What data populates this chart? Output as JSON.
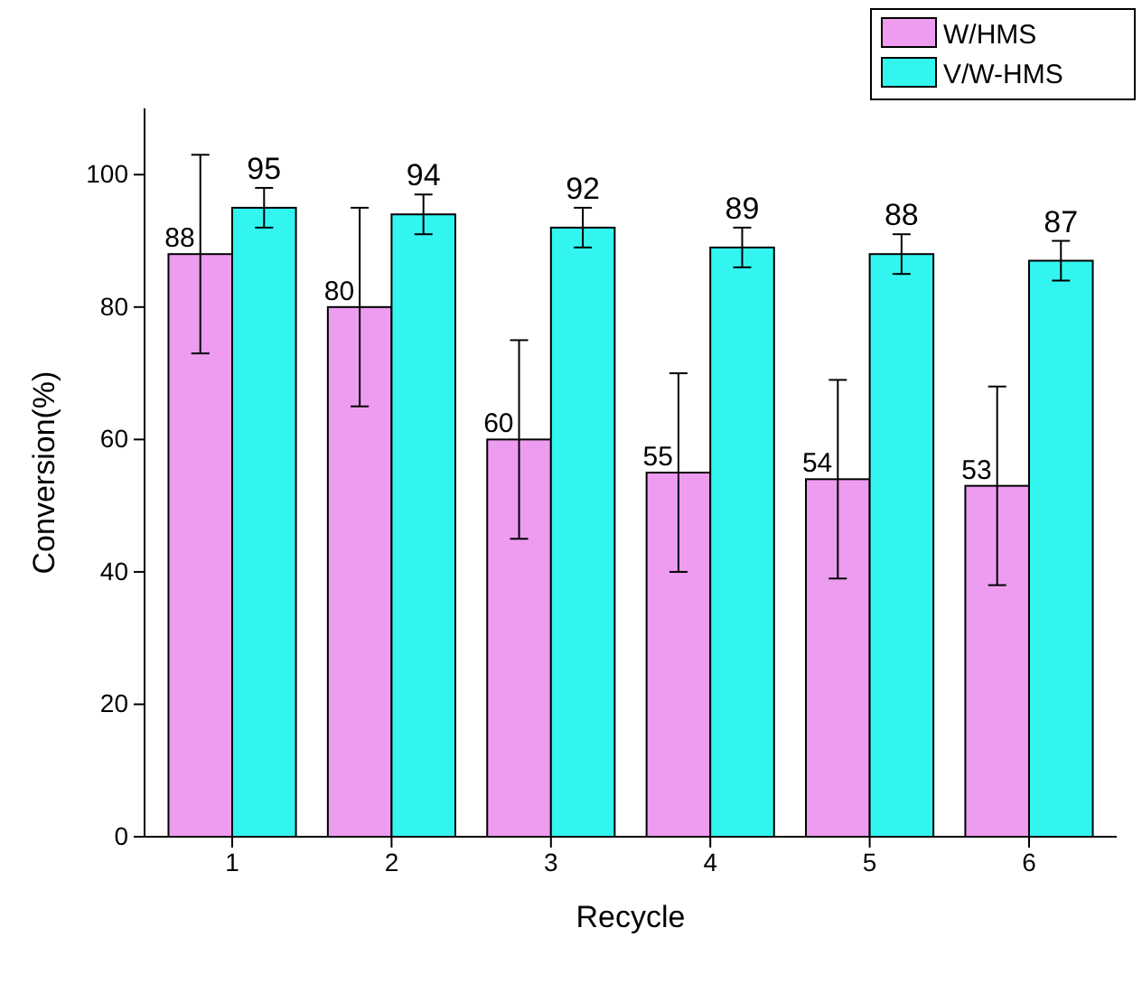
{
  "chart_data": {
    "type": "bar",
    "xlabel": "Recycle",
    "ylabel": "Conversion(%)",
    "categories": [
      "1",
      "2",
      "3",
      "4",
      "5",
      "6"
    ],
    "series": [
      {
        "name": "W/HMS",
        "color": "#ee9cf0",
        "values": [
          88,
          80,
          60,
          55,
          54,
          53
        ],
        "errors": [
          15,
          15,
          15,
          15,
          15,
          15
        ]
      },
      {
        "name": "V/W-HMS",
        "color": "#33f5f0",
        "values": [
          95,
          94,
          92,
          89,
          88,
          87
        ],
        "errors": [
          3,
          3,
          3,
          3,
          3,
          3
        ]
      }
    ],
    "ylim": [
      0,
      110
    ],
    "yticks": [
      0,
      20,
      40,
      60,
      80,
      100
    ],
    "data_labels": true,
    "legend": "top right",
    "grid": false
  }
}
